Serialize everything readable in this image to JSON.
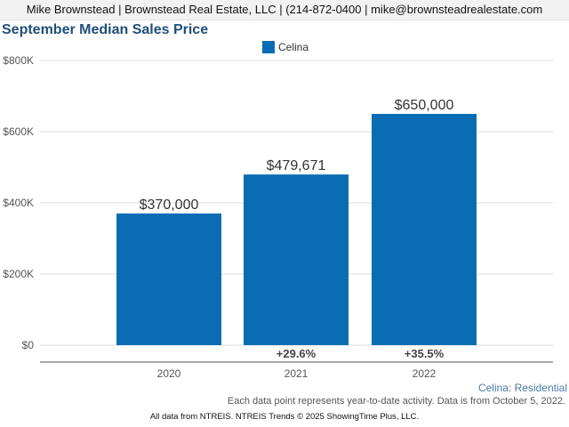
{
  "header": {
    "contact": "Mike Brownstead | Brownstead Real Estate, LLC | (214-872-0400 | mike@brownsteadrealestate.com"
  },
  "region_label": "Celina: Residential",
  "note": "Each data point represents year-to-date activity. Data is from October 5, 2022.",
  "source": "All data from NTREIS. NTREIS Trends © 2025 ShowingTime Plus, LLC.",
  "colors": {
    "bar": "#0a6db4",
    "title": "#1f4e79"
  },
  "chart_data": {
    "type": "bar",
    "title": "September Median Sales Price",
    "categories": [
      "2020",
      "2021",
      "2022"
    ],
    "series": [
      {
        "name": "Celina",
        "values": [
          370000,
          479671,
          650000
        ]
      }
    ],
    "data_labels": [
      "$370,000",
      "$479,671",
      "$650,000"
    ],
    "change_labels": [
      "",
      "+29.6%",
      "+35.5%"
    ],
    "yticks": [
      0,
      200000,
      400000,
      600000,
      800000
    ],
    "ytick_labels": [
      "$0",
      "$200K",
      "$400K",
      "$600K",
      "$800K"
    ],
    "ylim": [
      0,
      800000
    ],
    "grid": true,
    "legend_position": "top-center",
    "xlabel": "",
    "ylabel": ""
  }
}
